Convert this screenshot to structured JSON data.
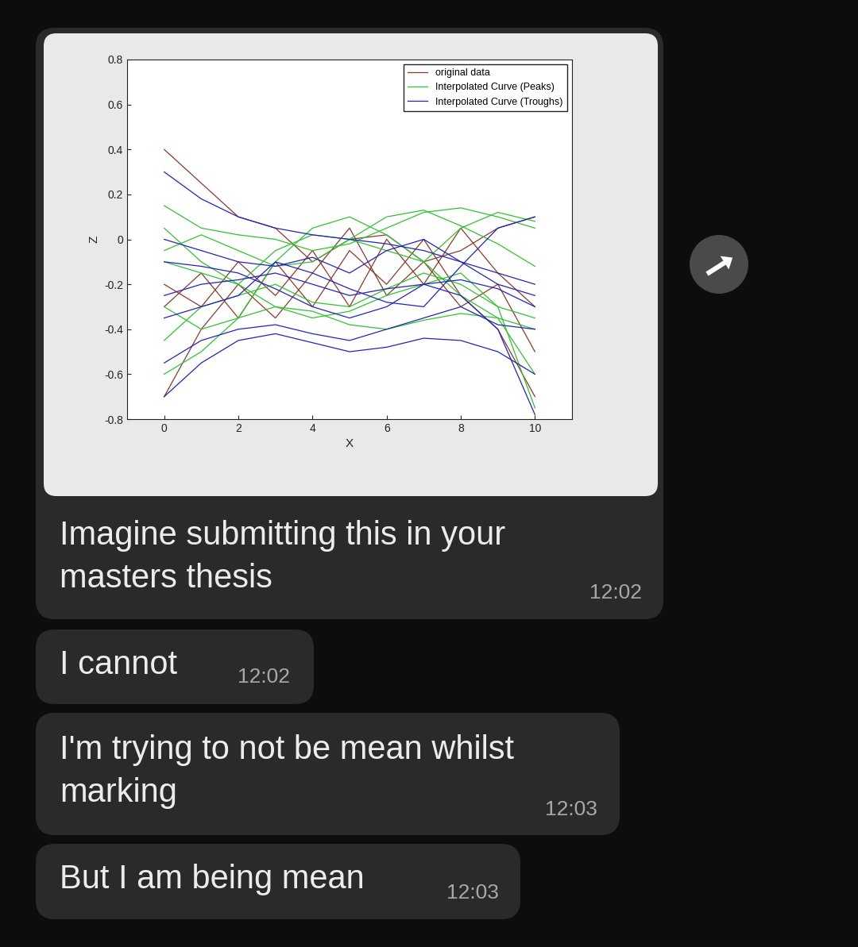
{
  "chart_data": {
    "type": "line",
    "x_label": "X",
    "y_label": "Z",
    "xlim": [
      -1,
      11
    ],
    "xticks": [
      0,
      2,
      4,
      6,
      8,
      10
    ],
    "ylim": [
      -0.8,
      0.8
    ],
    "yticks": [
      -0.8,
      -0.6,
      -0.4,
      -0.2,
      0,
      0.2,
      0.4,
      0.6,
      0.8
    ],
    "grid": false,
    "legend": "upper right",
    "series": [
      {
        "name": "original data",
        "color": "#8b3a2a",
        "x": [
          0,
          1,
          2,
          3,
          4,
          5,
          6,
          7,
          8,
          9,
          10
        ],
        "lines": [
          [
            0.4,
            0.25,
            0.1,
            0.05,
            -0.1,
            0.0,
            0.02,
            -0.1,
            -0.05,
            0.05,
            0.1
          ],
          [
            -0.2,
            -0.3,
            -0.1,
            -0.25,
            -0.05,
            -0.3,
            0.0,
            -0.2,
            0.05,
            -0.15,
            -0.3
          ],
          [
            -0.7,
            -0.4,
            -0.2,
            -0.35,
            -0.15,
            0.05,
            -0.25,
            -0.1,
            -0.3,
            -0.2,
            -0.5
          ],
          [
            -0.3,
            -0.15,
            -0.35,
            -0.1,
            -0.3,
            -0.05,
            -0.2,
            0.0,
            -0.25,
            -0.4,
            -0.7
          ]
        ]
      },
      {
        "name": "Interpolated Curve (Peaks)",
        "color": "#2ec42e",
        "x": [
          0,
          1,
          2,
          3,
          4,
          5,
          6,
          7,
          8,
          9,
          10
        ],
        "lines": [
          [
            0.15,
            0.05,
            0.02,
            0.0,
            -0.05,
            -0.02,
            0.05,
            0.12,
            0.14,
            0.1,
            0.05
          ],
          [
            -0.1,
            -0.15,
            -0.2,
            -0.05,
            0.02,
            0.0,
            -0.05,
            -0.1,
            0.05,
            0.12,
            0.08
          ],
          [
            -0.45,
            -0.3,
            -0.25,
            -0.2,
            -0.28,
            -0.3,
            -0.22,
            -0.15,
            -0.2,
            -0.3,
            -0.35
          ],
          [
            -0.6,
            -0.5,
            -0.35,
            -0.1,
            0.05,
            0.1,
            0.02,
            -0.1,
            -0.25,
            -0.35,
            -0.4
          ],
          [
            -0.05,
            0.02,
            -0.05,
            -0.12,
            -0.1,
            0.0,
            0.1,
            0.13,
            0.06,
            -0.02,
            -0.12
          ],
          [
            -0.3,
            -0.4,
            -0.35,
            -0.3,
            -0.32,
            -0.38,
            -0.4,
            -0.36,
            -0.33,
            -0.35,
            -0.6
          ],
          [
            0.05,
            -0.1,
            -0.2,
            -0.3,
            -0.35,
            -0.32,
            -0.25,
            -0.2,
            -0.15,
            -0.3,
            -0.75
          ]
        ]
      },
      {
        "name": "Interpolated Curve (Troughs)",
        "color": "#2222c0",
        "x": [
          0,
          1,
          2,
          3,
          4,
          5,
          6,
          7,
          8,
          9,
          10
        ],
        "lines": [
          [
            0.3,
            0.18,
            0.1,
            0.05,
            0.02,
            0.0,
            -0.02,
            -0.05,
            -0.1,
            -0.15,
            -0.2
          ],
          [
            -0.25,
            -0.2,
            -0.18,
            -0.15,
            -0.2,
            -0.25,
            -0.22,
            -0.2,
            -0.18,
            -0.22,
            -0.3
          ],
          [
            -0.55,
            -0.45,
            -0.4,
            -0.38,
            -0.42,
            -0.45,
            -0.4,
            -0.35,
            -0.3,
            -0.38,
            -0.4
          ],
          [
            -0.35,
            -0.3,
            -0.25,
            -0.1,
            -0.15,
            -0.22,
            -0.28,
            -0.3,
            -0.12,
            0.05,
            0.1
          ],
          [
            -0.1,
            -0.12,
            -0.15,
            -0.22,
            -0.3,
            -0.35,
            -0.3,
            -0.2,
            -0.25,
            -0.4,
            -0.78
          ],
          [
            -0.7,
            -0.55,
            -0.45,
            -0.42,
            -0.46,
            -0.5,
            -0.48,
            -0.44,
            -0.45,
            -0.5,
            -0.6
          ],
          [
            0.0,
            -0.05,
            -0.1,
            -0.12,
            -0.08,
            -0.15,
            -0.05,
            0.0,
            -0.1,
            -0.2,
            -0.25
          ]
        ]
      }
    ]
  },
  "messages": [
    {
      "text": "Imagine submitting this in your\nmasters thesis",
      "time": "12:02"
    },
    {
      "text": "I cannot",
      "time": "12:02"
    },
    {
      "text": "I'm trying to not be mean whilst\nmarking",
      "time": "12:03"
    },
    {
      "text": "But I am being mean",
      "time": "12:03"
    }
  ]
}
